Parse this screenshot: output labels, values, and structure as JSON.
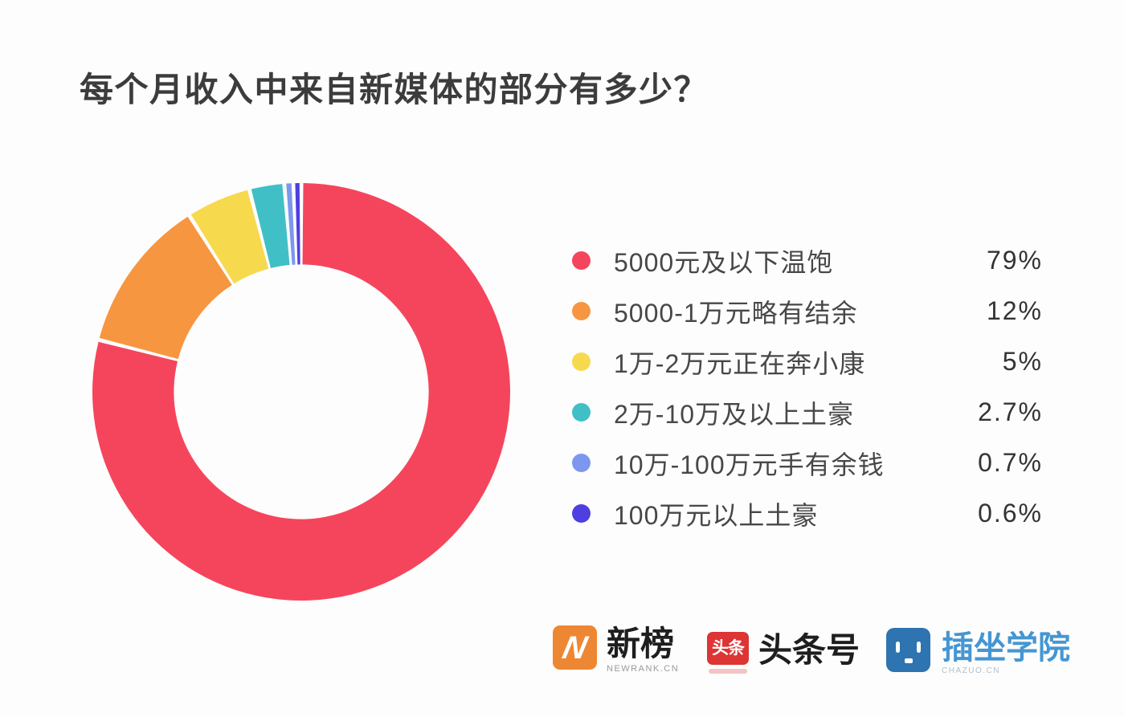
{
  "title": "每个月收入中来自新媒体的部分有多少？",
  "chart_data": {
    "type": "pie",
    "subtype": "donut",
    "title": "每个月收入中来自新媒体的部分有多少？",
    "categories": [
      "5000元及以下温饱",
      "5000-1万元略有结余",
      "1万-2万元正在奔小康",
      "2万-10万及以上土豪",
      "10万-100万元手有余钱",
      "100万元以上土豪"
    ],
    "values": [
      79,
      12,
      5,
      2.7,
      0.7,
      0.6
    ],
    "value_labels": [
      "79%",
      "12%",
      "5%",
      "2.7%",
      "0.7%",
      "0.6%"
    ],
    "unit": "%",
    "colors": [
      "#F5455C",
      "#F79641",
      "#F7D94E",
      "#40C0C6",
      "#7D97EE",
      "#4E3FE0"
    ],
    "start_angle_deg": 0,
    "direction": "clockwise",
    "inner_radius_ratio": 0.61,
    "segment_gap_deg": 1.1,
    "legend_position": "right",
    "grid": false
  },
  "footer": {
    "brands": {
      "newrank": {
        "icon_letter": "N",
        "name": "新榜",
        "sub": "NEWRANK.CN"
      },
      "toutiao": {
        "icon_text": "头条",
        "name": "头条号"
      },
      "chazuo": {
        "name": "插坐学院",
        "sub": "CHAZUO.CN"
      }
    }
  }
}
